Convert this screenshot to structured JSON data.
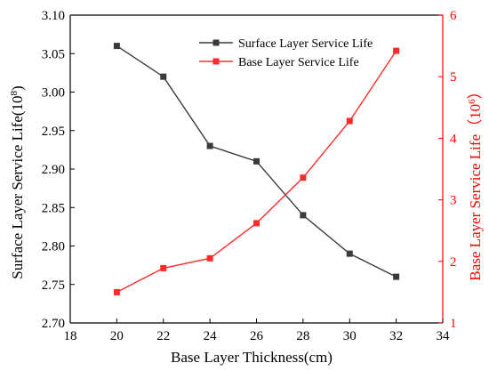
{
  "colors": {
    "left_axis": "#000000",
    "right_axis": "#ff0000",
    "series_surface": "#3a3a3a",
    "series_base": "#ff2a2a"
  },
  "chart_data": {
    "type": "line",
    "title": "",
    "xlabel": "Base Layer Thickness(cm)",
    "ylabel_left_text": "Surface Layer Service Life(",
    "ylabel_left_base": "10",
    "ylabel_left_exp": "8",
    "ylabel_left_close": ")",
    "ylabel_right_text": "Base Layer Service Life（",
    "ylabel_right_base": "10",
    "ylabel_right_exp": "6",
    "ylabel_right_close": "）",
    "xlim": [
      18,
      34
    ],
    "xticks": [
      18,
      20,
      22,
      24,
      26,
      28,
      30,
      32,
      34
    ],
    "ylim_left": [
      2.7,
      3.1
    ],
    "yticks_left": [
      "2.70",
      "2.75",
      "2.80",
      "2.85",
      "2.90",
      "2.95",
      "3.00",
      "3.05",
      "3.10"
    ],
    "ylim_right": [
      1,
      6
    ],
    "yticks_right": [
      "1",
      "2",
      "3",
      "4",
      "5",
      "6"
    ],
    "grid": false,
    "legend_position": "top-right",
    "x": [
      20,
      22,
      24,
      26,
      28,
      30,
      32
    ],
    "series": [
      {
        "name": "Surface Layer Service Life",
        "axis": "left",
        "marker": "square",
        "values": [
          3.06,
          3.02,
          2.93,
          2.91,
          2.84,
          2.79,
          2.76
        ]
      },
      {
        "name": "Base Layer Service Life",
        "axis": "right",
        "marker": "square",
        "values": [
          1.5,
          1.89,
          2.05,
          2.62,
          3.36,
          4.28,
          5.42
        ]
      }
    ]
  }
}
